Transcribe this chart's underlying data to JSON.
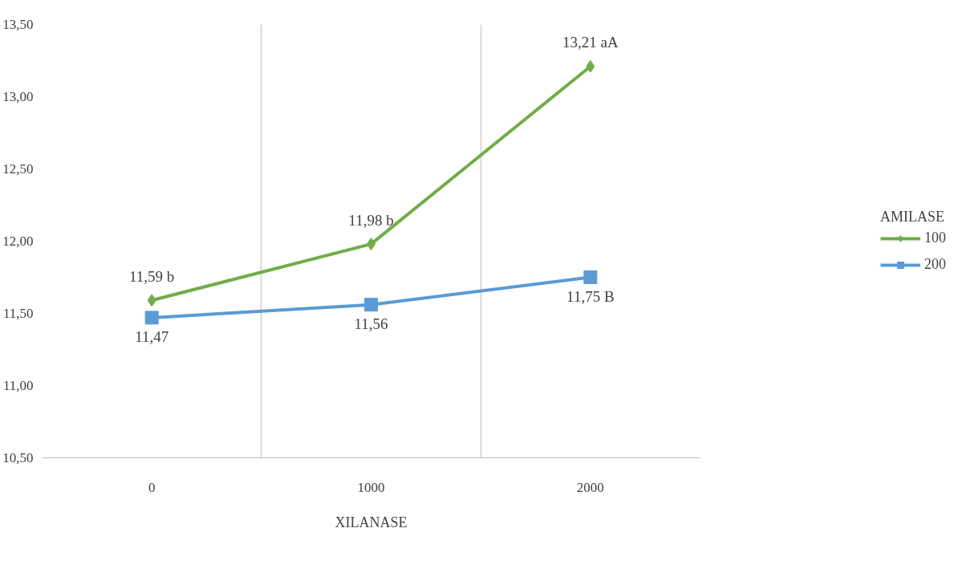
{
  "chart_data": {
    "type": "line",
    "xlabel": "XILANASE",
    "legend_title": "AMILASE",
    "categories": [
      "0",
      "1000",
      "2000"
    ],
    "series": [
      {
        "name": "100",
        "color": "#70ad47",
        "marker": "diamond",
        "values": [
          11.59,
          11.98,
          13.21
        ],
        "value_labels": [
          "11,59 b",
          "11,98 b",
          "13,21 aA"
        ]
      },
      {
        "name": "200",
        "color": "#5b9bd5",
        "marker": "square",
        "values": [
          11.47,
          11.56,
          11.75
        ],
        "value_labels": [
          "11,47",
          "11,56",
          "11,75 B"
        ]
      }
    ],
    "ylim": [
      10.5,
      13.5
    ],
    "yticks": [
      {
        "value": 10.5,
        "label": "10,50"
      },
      {
        "value": 11.0,
        "label": "11,00"
      },
      {
        "value": 11.5,
        "label": "11,50"
      },
      {
        "value": 12.0,
        "label": "12,00"
      },
      {
        "value": 12.5,
        "label": "12,50"
      },
      {
        "value": 13.0,
        "label": "13,00"
      },
      {
        "value": 13.5,
        "label": "13,50"
      }
    ],
    "grid": "x",
    "legend": "right",
    "line_style": "solid"
  }
}
